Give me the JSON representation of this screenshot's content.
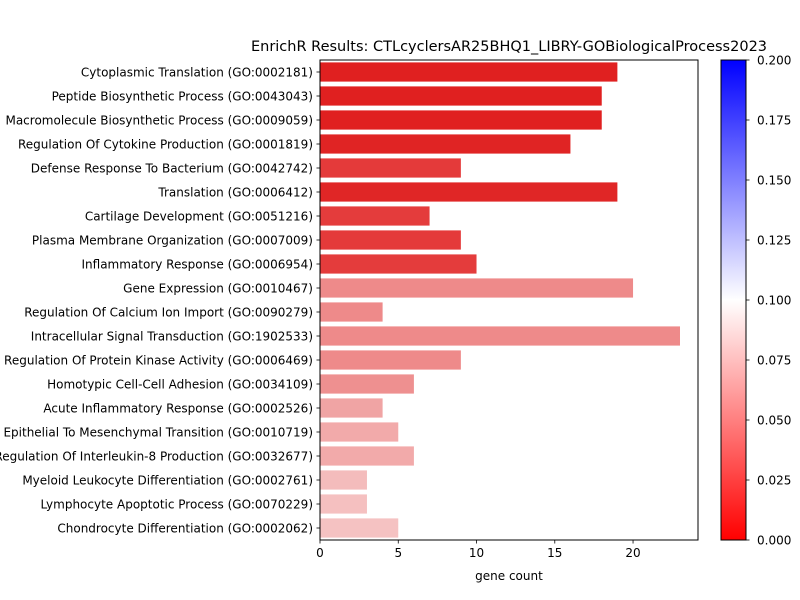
{
  "chart_data": {
    "type": "bar",
    "orientation": "horizontal",
    "title": "EnrichR Results: CTLcyclersAR25BHQ1_LIBRY-GOBiologicalProcess2023",
    "xlabel": "gene count",
    "ylabel": "",
    "xlim": [
      0,
      24.15
    ],
    "xticks": [
      0,
      5,
      10,
      15,
      20
    ],
    "grid": false,
    "categories": [
      "Cytoplasmic Translation (GO:0002181)",
      "Peptide Biosynthetic Process (GO:0043043)",
      "Macromolecule Biosynthetic Process (GO:0009059)",
      "Regulation Of Cytokine Production (GO:0001819)",
      "Defense Response To Bacterium (GO:0042742)",
      "Translation (GO:0006412)",
      "Cartilage Development (GO:0051216)",
      "Plasma Membrane Organization (GO:0007009)",
      "Inflammatory Response (GO:0006954)",
      "Gene Expression (GO:0010467)",
      "Regulation Of Calcium Ion Import (GO:0090279)",
      "Intracellular Signal Transduction (GO:1902533)",
      "Regulation Of Protein Kinase Activity (GO:0006469)",
      "Homotypic Cell-Cell Adhesion (GO:0034109)",
      "Acute Inflammatory Response (GO:0002526)",
      "Epithelial To Mesenchymal Transition (GO:0010719)",
      "Regulation Of Interleukin-8 Production (GO:0032677)",
      "Myeloid Leukocyte Differentiation (GO:0002761)",
      "Lymphocyte Apoptotic Process (GO:0070229)",
      "Chondrocyte Differentiation (GO:0002062)"
    ],
    "values": [
      19,
      18,
      18,
      16,
      9,
      19,
      7,
      9,
      10,
      20,
      4,
      23,
      9,
      6,
      4,
      5,
      6,
      3,
      3,
      5
    ],
    "colors": [
      "#e02020",
      "#e02020",
      "#e02020",
      "#e02424",
      "#e43a3a",
      "#e02626",
      "#e43c3c",
      "#e43a3a",
      "#e43c3c",
      "#ee8a8a",
      "#ee8a8a",
      "#ee8a8a",
      "#ee8a8a",
      "#ee9090",
      "#f0a4a4",
      "#f2aaaa",
      "#f2aaaa",
      "#f4bcbc",
      "#f5c0c0",
      "#f5c2c2"
    ],
    "colorbar": {
      "range": [
        0.0,
        0.2
      ],
      "ticks": [
        "0.000",
        "0.025",
        "0.050",
        "0.075",
        "0.100",
        "0.125",
        "0.150",
        "0.175",
        "0.200"
      ],
      "colormap": [
        "#ff0000",
        "#ffffff",
        "#0000ff"
      ]
    }
  }
}
